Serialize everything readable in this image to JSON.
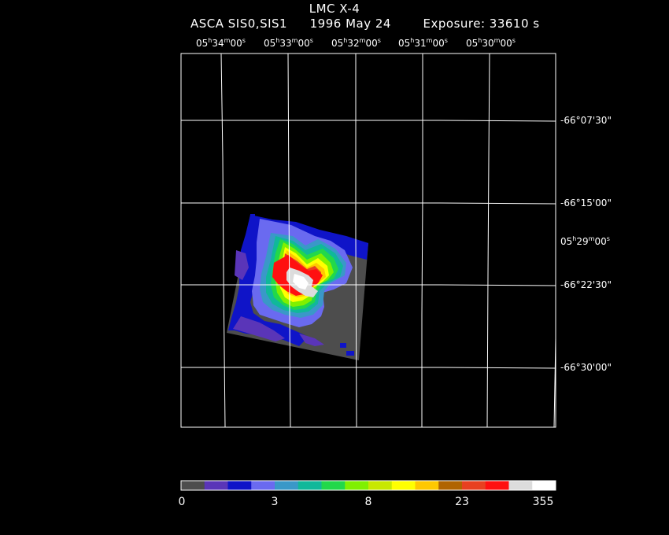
{
  "header": {
    "target": "LMC X-4",
    "instrument": "ASCA SIS0,SIS1",
    "date": "1996 May 24",
    "exposure": "Exposure: 33610 s"
  },
  "ra_ticks": [
    {
      "h": "05",
      "m": "34",
      "s": "00"
    },
    {
      "h": "05",
      "m": "33",
      "s": "00"
    },
    {
      "h": "05",
      "m": "32",
      "s": "00"
    },
    {
      "h": "05",
      "m": "31",
      "s": "00"
    },
    {
      "h": "05",
      "m": "30",
      "s": "00"
    }
  ],
  "ra_side_tick": {
    "h": "05",
    "m": "29",
    "s": "00"
  },
  "dec_ticks": [
    "-66°07'30\"",
    "-66°15'00\"",
    "-66°22'30\"",
    "-66°30'00\""
  ],
  "colorbar": {
    "colors": [
      "#4d4d4d",
      "#5a35b8",
      "#0f14c8",
      "#6a6af0",
      "#3a98c8",
      "#10b89a",
      "#22d84a",
      "#80f000",
      "#c8e800",
      "#ffff00",
      "#ffc800",
      "#b06400",
      "#e84020",
      "#ff1010",
      "#dcdcdc",
      "#ffffff"
    ],
    "labels": [
      "0",
      "3",
      "8",
      "23",
      "355"
    ]
  }
}
